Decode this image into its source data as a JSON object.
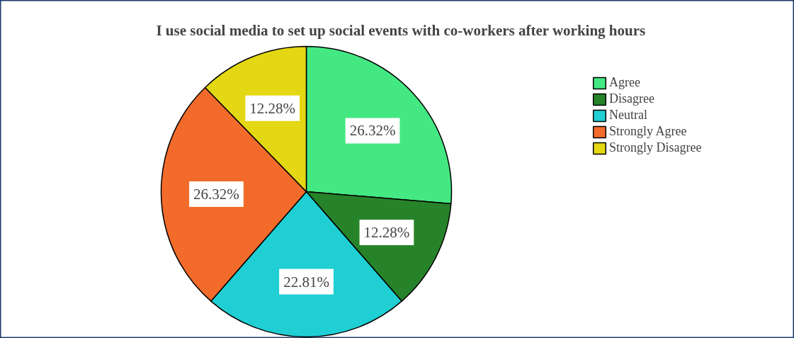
{
  "chart_data": {
    "type": "pie",
    "title": "I use social media to set up social events with co-workers after working hours",
    "categories": [
      "Agree",
      "Disagree",
      "Neutral",
      "Strongly Agree",
      "Strongly Disagree"
    ],
    "values": [
      26.32,
      12.28,
      22.81,
      26.32,
      12.28
    ],
    "colors": [
      "#44e882",
      "#27832a",
      "#1fcfd3",
      "#f26b2b",
      "#e3d813"
    ],
    "value_labels": [
      "26.32%",
      "12.28%",
      "22.81%",
      "26.32%",
      "12.28%"
    ],
    "legend": "right"
  }
}
